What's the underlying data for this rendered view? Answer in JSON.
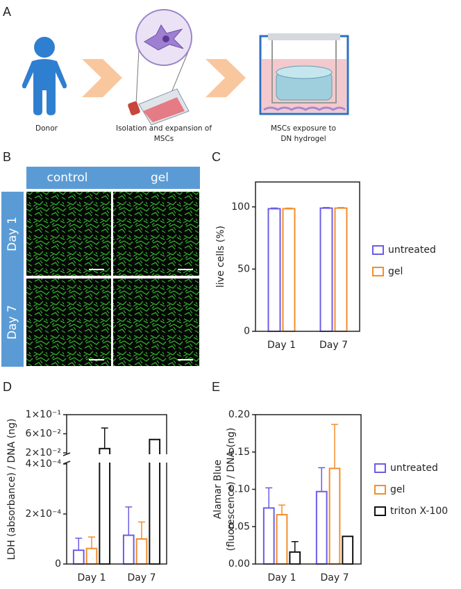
{
  "panel_a": {
    "label": "A",
    "steps": [
      [
        "Donor"
      ],
      [
        "Isolation and expansion of",
        "MSCs"
      ],
      [
        "MSCs exposure to",
        "DN hydrogel"
      ]
    ]
  },
  "panel_b": {
    "label": "B",
    "columns": [
      "control",
      "gel"
    ],
    "rows": [
      "Day 1",
      "Day 7"
    ]
  },
  "chart_data": [
    {
      "type": "bar",
      "panel_label": "C",
      "ylabel": "live cells (%)",
      "categories": [
        "Day 1",
        "Day 7"
      ],
      "series": [
        {
          "name": "untreated",
          "color": "#6b5ce7",
          "values": [
            98.5,
            99
          ],
          "errors": [
            0.6,
            0.5
          ]
        },
        {
          "name": "gel",
          "color": "#f28e2b",
          "values": [
            98.5,
            99
          ],
          "errors": [
            0.5,
            0.5
          ]
        }
      ],
      "ylim": [
        0,
        120
      ],
      "yticks": [
        0,
        50,
        100
      ],
      "legend": "right"
    },
    {
      "type": "bar",
      "panel_label": "D",
      "ylabel": "LDH (absorbance) / DNA (ng)",
      "categories": [
        "Day 1",
        "Day 7"
      ],
      "series": [
        {
          "color": "#6b5ce7",
          "values": [
            5.5e-05,
            0.000115
          ],
          "errors": [
            4.8e-05,
            0.000113
          ]
        },
        {
          "color": "#f28e2b",
          "values": [
            6.2e-05,
            0.0001
          ],
          "errors": [
            4.6e-05,
            6.8e-05
          ]
        },
        {
          "color": "#111111",
          "values": [
            0.029,
            0.048
          ],
          "errors": [
            0.043,
            null
          ]
        }
      ],
      "ylim_lower": [
        0,
        0.0004
      ],
      "ylim_upper": [
        0.02,
        0.1
      ],
      "yticks": [
        0,
        {
          "value": 0.0002,
          "label": "2×10⁻⁴"
        },
        {
          "value": 0.0004,
          "label": "4×10⁻⁴"
        },
        {
          "value": 0.02,
          "label": "2×10⁻²"
        },
        {
          "value": 0.06,
          "label": "6×10⁻²"
        },
        {
          "value": 0.1,
          "label": "1×10⁻¹"
        }
      ]
    },
    {
      "type": "bar",
      "panel_label": "E",
      "ylabel": [
        "Alamar Blue",
        "(fluorescence) / DNA (ng)"
      ],
      "categories": [
        "Day 1",
        "Day 7"
      ],
      "series": [
        {
          "name": "untreated",
          "color": "#6b5ce7",
          "values": [
            0.075,
            0.097
          ],
          "errors": [
            0.027,
            0.032
          ]
        },
        {
          "name": "gel",
          "color": "#f28e2b",
          "values": [
            0.066,
            0.128
          ],
          "errors": [
            0.013,
            0.059
          ]
        },
        {
          "name": "triton X-100",
          "color": "#111111",
          "values": [
            0.016,
            0.037
          ],
          "errors": [
            0.014,
            null
          ]
        }
      ],
      "ylim": [
        0,
        0.2
      ],
      "yticks": [
        {
          "value": 0,
          "label": "0.00"
        },
        {
          "value": 0.05,
          "label": "0.05"
        },
        {
          "value": 0.1,
          "label": "0.10"
        },
        {
          "value": 0.15,
          "label": "0.15"
        },
        {
          "value": 0.2,
          "label": "0.20"
        }
      ],
      "legend": "right"
    }
  ]
}
